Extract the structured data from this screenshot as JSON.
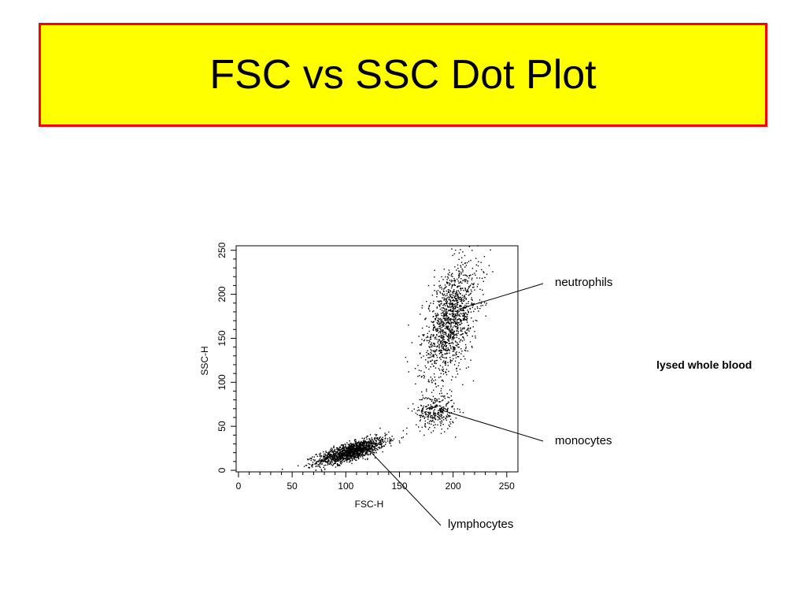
{
  "slide": {
    "title": "FSC vs SSC Dot Plot",
    "note": "lysed whole blood"
  },
  "colors": {
    "title_background": "#ffff00",
    "title_border": "#ff0000",
    "dots": "#000000"
  },
  "chart_data": {
    "type": "scatter",
    "title": "",
    "xlabel": "FSC-H",
    "ylabel": "SSC-H",
    "xlim": [
      0,
      256
    ],
    "ylim": [
      0,
      256
    ],
    "x_ticks": [
      0,
      50,
      100,
      150,
      200,
      250
    ],
    "y_ticks": [
      0,
      50,
      100,
      150,
      200,
      250
    ],
    "grid": false,
    "legend": "none",
    "populations": [
      {
        "name": "lymphocytes",
        "center": [
          105,
          22
        ],
        "spread": [
          16,
          5
        ],
        "tilt": 0.35,
        "count": 1400
      },
      {
        "name": "monocytes",
        "center": [
          183,
          67
        ],
        "spread": [
          9,
          10
        ],
        "tilt": 0,
        "count": 300
      },
      {
        "name": "neutrophils",
        "center": [
          197,
          170
        ],
        "spread": [
          13,
          28
        ],
        "tilt": 1.3,
        "count": 1300
      }
    ],
    "annotations": [
      {
        "text": "neutrophils",
        "x": 205,
        "y": 183
      },
      {
        "text": "monocytes",
        "x": 190,
        "y": 68
      },
      {
        "text": "lymphocytes",
        "x": 120,
        "y": 25
      }
    ]
  }
}
